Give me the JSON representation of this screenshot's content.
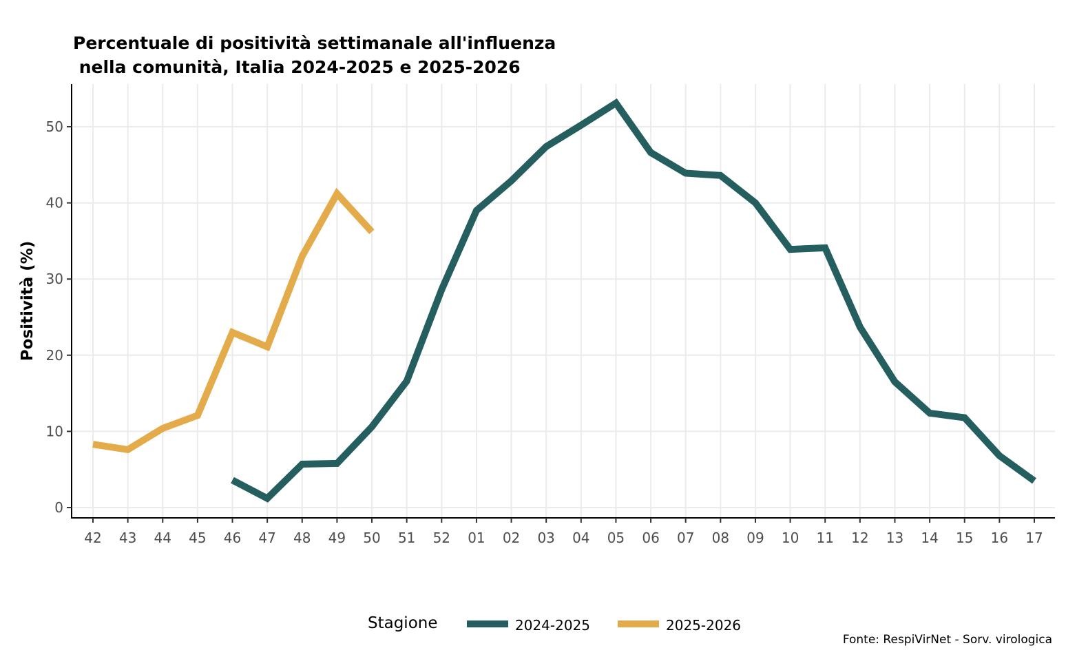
{
  "chart_data": {
    "type": "line",
    "title_lines": [
      "Percentuale di positività settimanale all'influenza",
      " nella comunità, Italia 2024-2025 e 2025-2026"
    ],
    "xlabel": "",
    "ylabel": "Positività (%)",
    "ylim": [
      -1.5,
      55.5
    ],
    "yticks": [
      0,
      10,
      20,
      30,
      40,
      50
    ],
    "ytick_labels": [
      "0",
      "10",
      "20",
      "30",
      "40",
      "50"
    ],
    "categories": [
      "42",
      "43",
      "44",
      "45",
      "46",
      "47",
      "48",
      "49",
      "50",
      "51",
      "52",
      "01",
      "02",
      "03",
      "04",
      "05",
      "06",
      "07",
      "08",
      "09",
      "10",
      "11",
      "12",
      "13",
      "14",
      "15",
      "16",
      "17"
    ],
    "grid": true,
    "legend": {
      "title": "Stagione",
      "position": "bottom"
    },
    "caption": "Fonte: RespiVirNet - Sorv. virologica",
    "series": [
      {
        "name": "2024-2025",
        "color": "#255e5f",
        "categories": [
          "46",
          "47",
          "48",
          "49",
          "50",
          "51",
          "52",
          "01",
          "02",
          "03",
          "04",
          "05",
          "06",
          "07",
          "08",
          "09",
          "10",
          "11",
          "12",
          "13",
          "14",
          "15",
          "16",
          "17"
        ],
        "values": [
          3.6,
          1.2,
          5.7,
          5.8,
          10.6,
          16.6,
          28.6,
          39.0,
          42.9,
          47.4,
          50.2,
          53.1,
          46.6,
          43.9,
          43.6,
          40.0,
          33.9,
          34.1,
          23.7,
          16.5,
          12.4,
          11.8,
          6.8,
          3.5
        ]
      },
      {
        "name": "2025-2026",
        "color": "#e3ab4a",
        "categories": [
          "42",
          "43",
          "44",
          "45",
          "46",
          "47",
          "48",
          "49",
          "50"
        ],
        "values": [
          8.3,
          7.6,
          10.4,
          12.1,
          23.0,
          21.1,
          33.0,
          41.2,
          36.2
        ]
      }
    ]
  }
}
